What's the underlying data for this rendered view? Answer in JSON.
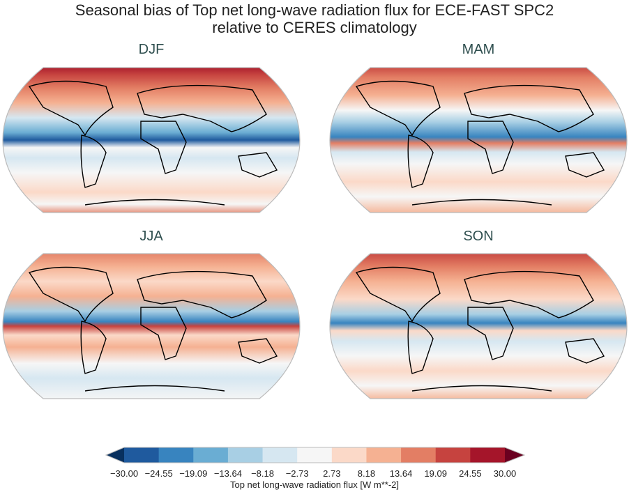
{
  "title_line1": "Seasonal bias of Top net long-wave radiation flux for ECE-FAST SPC2",
  "title_line2": "relative to CERES climatology",
  "panels": [
    {
      "season": "DJF"
    },
    {
      "season": "MAM"
    },
    {
      "season": "JJA"
    },
    {
      "season": "SON"
    }
  ],
  "colorbar": {
    "label": "Top net long-wave radiation flux [W m**-2]",
    "ticks": [
      "−30.00",
      "−24.55",
      "−19.09",
      "−13.64",
      "−8.18",
      "−2.73",
      "2.73",
      "8.18",
      "13.64",
      "19.09",
      "24.55",
      "30.00"
    ],
    "colors": [
      "#1f5a9e",
      "#3884bf",
      "#6aadd3",
      "#a8cfe4",
      "#d6e7f1",
      "#f6f6f6",
      "#fbd9c8",
      "#f5b192",
      "#e37e64",
      "#c6433f",
      "#a5152a"
    ],
    "under_color": "#08305f",
    "over_color": "#6b0020",
    "extend": "both"
  }
}
